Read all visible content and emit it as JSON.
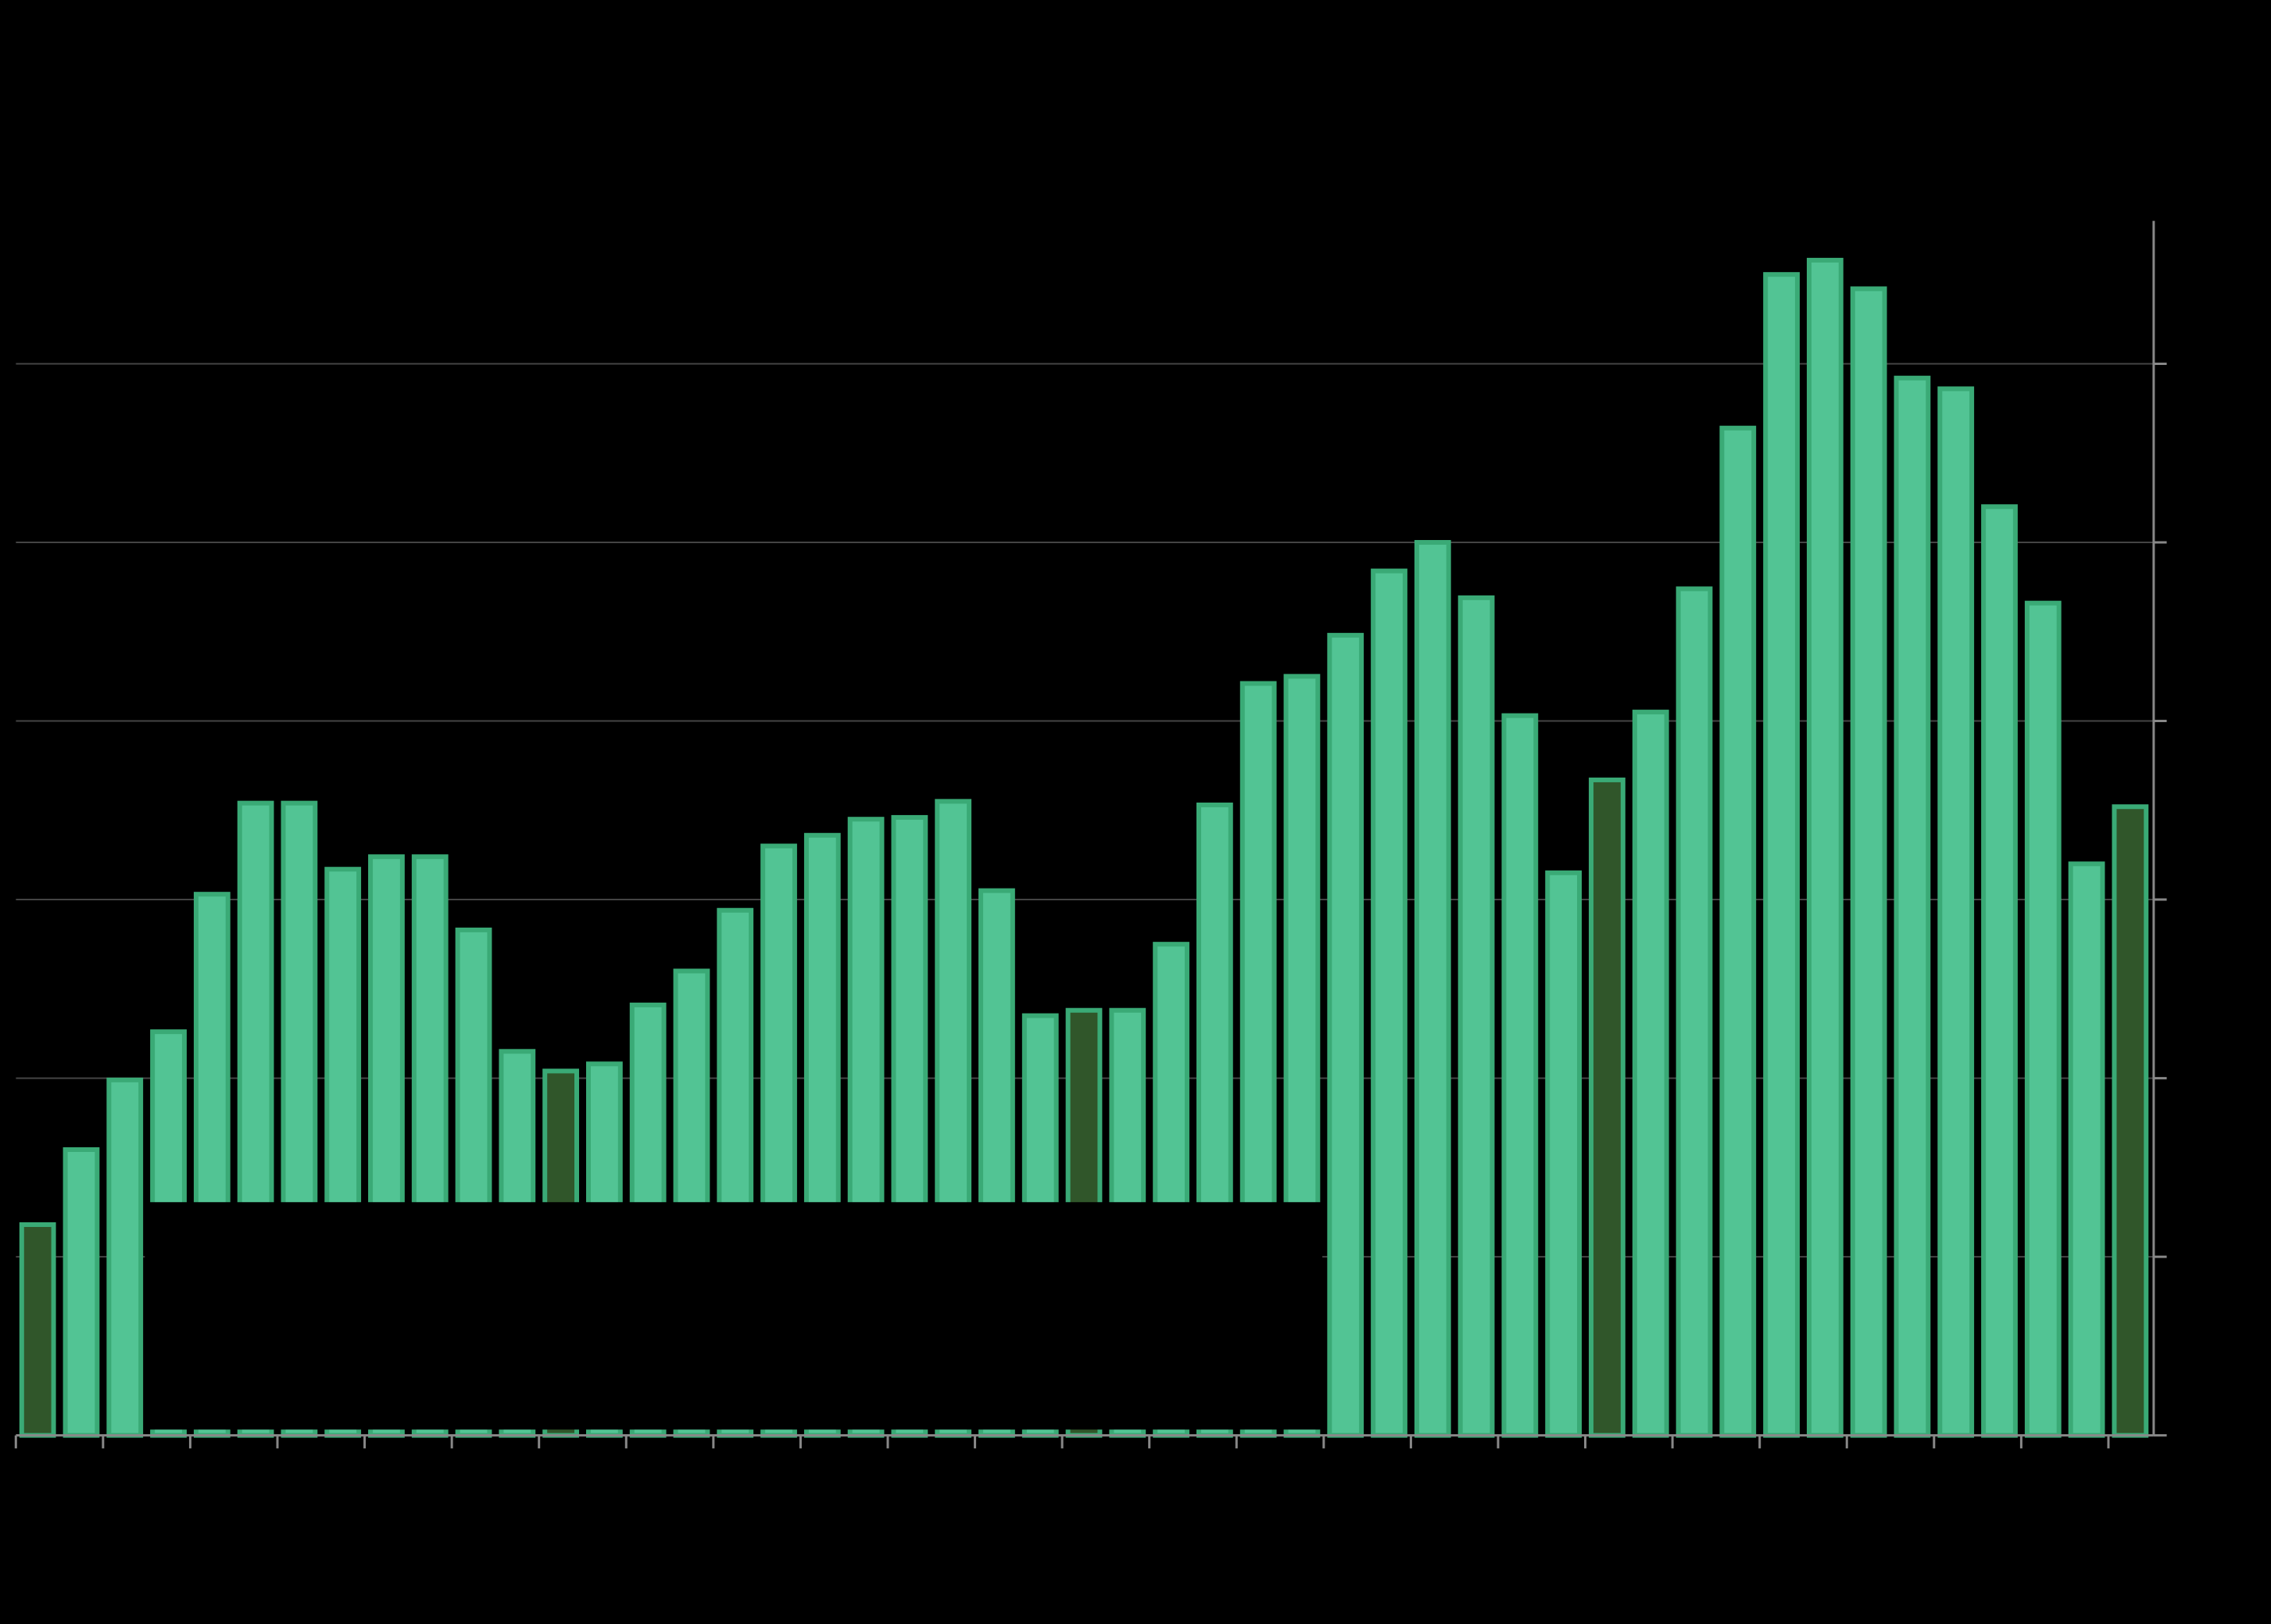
{
  "chart_data": {
    "type": "bar",
    "values": [
      1.18,
      1.6,
      1.99,
      2.26,
      3.03,
      3.54,
      3.54,
      3.17,
      3.24,
      3.24,
      2.83,
      2.15,
      2.04,
      2.08,
      2.41,
      2.6,
      2.94,
      3.3,
      3.36,
      3.45,
      3.46,
      3.55,
      3.05,
      2.35,
      2.38,
      2.38,
      2.75,
      3.53,
      4.21,
      4.25,
      4.48,
      4.84,
      5.0,
      4.69,
      4.03,
      3.15,
      3.67,
      4.05,
      4.74,
      5.64,
      6.5,
      6.58,
      6.42,
      5.92,
      5.86,
      5.2,
      4.66,
      3.2,
      3.52
    ],
    "color": "#52c494",
    "edge_color": "#3aaa76",
    "highlight_color": "#30562a",
    "highlight": [
      0,
      12,
      24,
      36,
      48
    ],
    "ylim": [
      0,
      6.8
    ],
    "yticks": [
      0,
      1,
      2,
      3,
      4,
      5,
      6
    ],
    "grid": true
  }
}
